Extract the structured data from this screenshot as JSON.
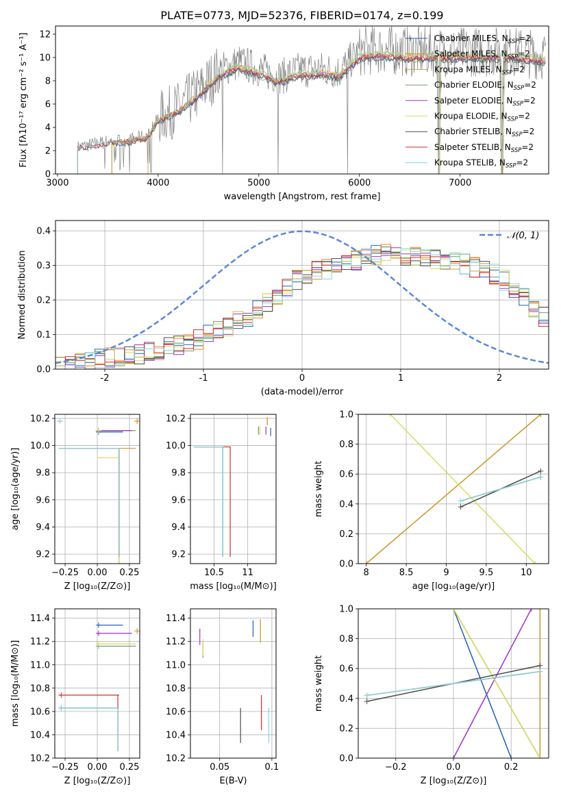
{
  "figure_title": "PLATE=0773, MJD=52376, FIBERID=0174, z=0.199",
  "colors": {
    "Chabrier MILES": "#1f5fb0",
    "Salpeter MILES": "#ff7f0e",
    "Kroupa MILES": "#c8a23c",
    "Chabrier ELODIE": "#6e9e6e",
    "Salpeter ELODIE": "#9b30c8",
    "Kroupa ELODIE": "#d9dc5a",
    "Chabrier STELIB": "#4a4a4a",
    "Salpeter STELIB": "#d62728",
    "Kroupa STELIB": "#7fd8e0",
    "data": "#7f7f7f",
    "gaussian": "#5a86d6",
    "grid": "#b0b0b0"
  },
  "chart_data": [
    {
      "id": "spectrum",
      "type": "line",
      "xlabel": "wavelength [Angstrom, rest frame]",
      "ylabel": "Flux [fλ10⁻¹⁷ erg cm⁻² s⁻¹ A⁻¹]",
      "xlim": [
        2980,
        7880
      ],
      "ylim": [
        0,
        12.7
      ],
      "xticks": [
        3000,
        4000,
        5000,
        6000,
        7000
      ],
      "yticks": [
        0,
        2,
        4,
        6,
        8,
        10,
        12
      ],
      "grid": false,
      "legend_position": "upper right",
      "legend": [
        {
          "base": "Chabrier MILES",
          "sub": "SSP",
          "suffix": "=2"
        },
        {
          "base": "Salpeter MILES",
          "sub": "SSP",
          "suffix": "=2"
        },
        {
          "base": "Kroupa MILES",
          "sub": "SSP",
          "suffix": "=2"
        },
        {
          "base": "Chabrier ELODIE",
          "sub": "SSP",
          "suffix": "=2"
        },
        {
          "base": "Salpeter ELODIE",
          "sub": "SSP",
          "suffix": "=2"
        },
        {
          "base": "Kroupa ELODIE",
          "sub": "SSP",
          "suffix": "=2"
        },
        {
          "base": "Chabrier STELIB",
          "sub": "SSP",
          "suffix": "=2"
        },
        {
          "base": "Salpeter STELIB",
          "sub": "SSP",
          "suffix": "=2"
        },
        {
          "base": "Kroupa STELIB",
          "sub": "SSP",
          "suffix": "=2"
        }
      ],
      "model_starts": {
        "Chabrier MILES": 3540,
        "Salpeter MILES": 3540,
        "Kroupa MILES": 3540,
        "Chabrier ELODIE": 3900,
        "Salpeter ELODIE": 3900,
        "Kroupa ELODIE": 3900,
        "Chabrier STELIB": 3200,
        "Salpeter STELIB": 3200,
        "Kroupa STELIB": 3200
      },
      "continuum": [
        [
          3200,
          2.3
        ],
        [
          3500,
          2.8
        ],
        [
          3700,
          2.9
        ],
        [
          3900,
          3.3
        ],
        [
          4000,
          4.8
        ],
        [
          4200,
          5.6
        ],
        [
          4400,
          7.0
        ],
        [
          4600,
          8.8
        ],
        [
          4800,
          9.6
        ],
        [
          5000,
          9.0
        ],
        [
          5200,
          8.3
        ],
        [
          5400,
          8.9
        ],
        [
          5600,
          9.0
        ],
        [
          5800,
          8.8
        ],
        [
          6000,
          10.5
        ],
        [
          6200,
          10.7
        ],
        [
          6500,
          10.5
        ],
        [
          7000,
          10.5
        ],
        [
          7500,
          10.5
        ],
        [
          7850,
          10.2
        ]
      ],
      "dropouts": [
        4640,
        5190,
        5880,
        6790,
        7410,
        7420
      ]
    },
    {
      "id": "residuals",
      "type": "histogram",
      "xlabel": "(data-model)/error",
      "ylabel": "Normed distribution",
      "xlim": [
        -2.5,
        2.5
      ],
      "ylim": [
        0,
        0.43
      ],
      "xticks": [
        -2,
        -1,
        0,
        1,
        2
      ],
      "yticks": [
        0.0,
        0.1,
        0.2,
        0.3,
        0.4
      ],
      "grid": true,
      "legend_position": "upper right",
      "gaussian_label": "𝒩(0, 1)",
      "hist_profile": [
        [
          -2.5,
          0.01
        ],
        [
          -1.5,
          0.05
        ],
        [
          -1.0,
          0.09
        ],
        [
          -0.5,
          0.16
        ],
        [
          0.0,
          0.27
        ],
        [
          0.5,
          0.31
        ],
        [
          0.9,
          0.34
        ],
        [
          1.2,
          0.32
        ],
        [
          1.6,
          0.31
        ],
        [
          2.0,
          0.27
        ],
        [
          2.5,
          0.14
        ]
      ]
    },
    {
      "id": "age_vs_Z",
      "type": "scatter",
      "xlabel": "Z [log₁₀(Z/Z⊙)]",
      "ylabel": "age  [log₁₀(age/yr)]",
      "xlim": [
        -0.33,
        0.33
      ],
      "ylim": [
        9.13,
        10.23
      ],
      "xticks": [
        -0.25,
        0.0,
        0.25
      ],
      "xtick_labels": [
        "−0.25",
        "0.00",
        "0.25"
      ],
      "yticks": [
        9.2,
        9.4,
        9.6,
        9.8,
        10.0,
        10.2
      ],
      "grid": true
    },
    {
      "id": "age_vs_mass",
      "type": "scatter",
      "xlabel": "mass [log₁₀(M/M⊙)]",
      "ylabel": "",
      "xlim": [
        10.15,
        11.42
      ],
      "ylim": [
        9.13,
        10.23
      ],
      "xticks": [
        10.5,
        11.0
      ],
      "yticks": [
        9.2,
        9.4,
        9.6,
        9.8,
        10.0,
        10.2
      ],
      "grid": true
    },
    {
      "id": "weight_vs_age",
      "type": "line",
      "xlabel": "age  [log₁₀(age/yr)]",
      "ylabel": "mass weight",
      "xlim": [
        7.9,
        10.28
      ],
      "ylim": [
        0,
        1.0
      ],
      "xticks": [
        8.0,
        8.5,
        9.0,
        9.5,
        10.0
      ],
      "yticks": [
        0.0,
        0.2,
        0.4,
        0.6,
        0.8,
        1.0
      ],
      "grid": true
    },
    {
      "id": "mass_vs_Z",
      "type": "scatter",
      "xlabel": "Z [log₁₀(Z/Z⊙)]",
      "ylabel": "mass [log₁₀(M/M⊙)]",
      "xlim": [
        -0.33,
        0.33
      ],
      "ylim": [
        10.2,
        11.48
      ],
      "xticks": [
        -0.25,
        0.0,
        0.25
      ],
      "xtick_labels": [
        "−0.25",
        "0.00",
        "0.25"
      ],
      "yticks": [
        10.2,
        10.4,
        10.6,
        10.8,
        11.0,
        11.2,
        11.4
      ],
      "grid": true
    },
    {
      "id": "mass_vs_EBV",
      "type": "scatter",
      "xlabel": "E(B-V)",
      "ylabel": "",
      "xlim": [
        0.022,
        0.104
      ],
      "ylim": [
        10.2,
        11.48
      ],
      "xticks": [
        0.05,
        0.1
      ],
      "yticks": [
        10.2,
        10.4,
        10.6,
        10.8,
        11.0,
        11.2,
        11.4
      ],
      "grid": true
    },
    {
      "id": "weight_vs_Z",
      "type": "line",
      "xlabel": "Z [log₁₀(Z/Z⊙)]",
      "ylabel": "mass weight",
      "xlim": [
        -0.33,
        0.33
      ],
      "ylim": [
        0,
        1.0
      ],
      "xticks": [
        -0.2,
        0.0,
        0.2
      ],
      "xtick_labels": [
        "−0.2",
        "0.0",
        "0.2"
      ],
      "yticks": [
        0.0,
        0.2,
        0.4,
        0.6,
        0.8,
        1.0
      ],
      "grid": true
    }
  ],
  "fits": [
    {
      "model": "Chabrier MILES",
      "ages": [
        10.1,
        10.1
      ],
      "Z": [
        0.0,
        0.2
      ],
      "weights": [
        1.0,
        0.0
      ],
      "mass": [
        11.34,
        11.34
      ],
      "ebv": 0.082
    },
    {
      "model": "Salpeter MILES",
      "ages": [
        8.0,
        10.18
      ],
      "Z": [
        0.3,
        0.3
      ],
      "weights": [
        0.0,
        1.0
      ],
      "mass": [
        11.29,
        11.35
      ],
      "ebv": 0.089
    },
    {
      "model": "Kroupa MILES",
      "ages": [
        8.0,
        10.18
      ],
      "Z": [
        0.3,
        0.3
      ],
      "weights": [
        0.0,
        1.0
      ],
      "mass": [
        11.29,
        11.35
      ],
      "ebv": 0.089
    },
    {
      "model": "Chabrier ELODIE",
      "ages": [
        10.11,
        10.11
      ],
      "Z": [
        0.0,
        0.3
      ],
      "weights": [
        1.0,
        0.0
      ],
      "mass": [
        11.16,
        11.16
      ],
      "ebv": 0.034
    },
    {
      "model": "Salpeter ELODIE",
      "ages": [
        10.11,
        10.11
      ],
      "Z": [
        0.0,
        0.27
      ],
      "weights": [
        0.0,
        1.0
      ],
      "mass": [
        11.27,
        11.27
      ],
      "ebv": 0.031
    },
    {
      "model": "Kroupa ELODIE",
      "ages": [
        8.3,
        10.11
      ],
      "Z": [
        0.0,
        0.3
      ],
      "weights": [
        1.0,
        0.0
      ],
      "mass": [
        11.18,
        11.18
      ],
      "ebv": 0.034
    },
    {
      "model": "Chabrier STELIB",
      "ages": [
        9.18,
        10.18
      ],
      "Z": [
        -0.3,
        0.3
      ],
      "weights": [
        0.38,
        0.62
      ],
      "mass": [
        10.63,
        10.63
      ],
      "ebv": 0.07
    },
    {
      "model": "Salpeter STELIB",
      "ages": [
        9.18,
        10.18
      ],
      "Z": [
        -0.3,
        0.3
      ],
      "weights": [
        0.42,
        0.58
      ],
      "mass": [
        10.74,
        10.74
      ],
      "ebv": 0.09
    },
    {
      "model": "Kroupa STELIB",
      "ages": [
        9.18,
        10.18
      ],
      "Z": [
        -0.3,
        0.3
      ],
      "weights": [
        0.42,
        0.58
      ],
      "mass": [
        10.63,
        10.63
      ],
      "ebv": 0.097
    }
  ]
}
